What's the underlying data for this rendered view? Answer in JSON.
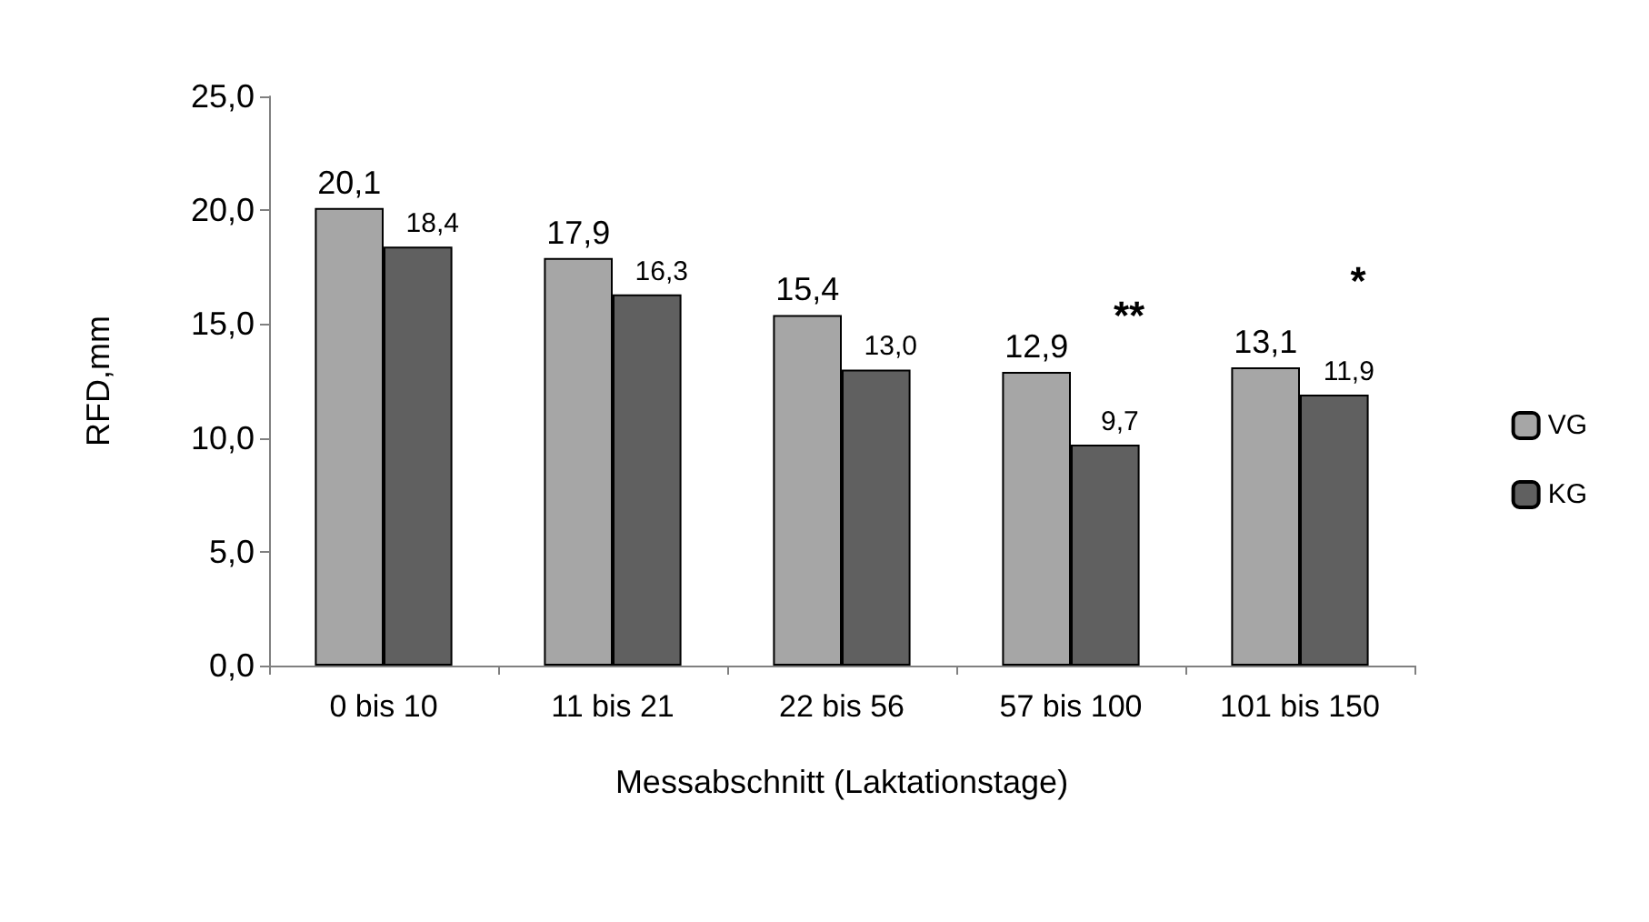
{
  "chart_data": {
    "type": "bar",
    "xlabel": "Messabschnitt (Laktationstage)",
    "ylabel": "RFD,mm",
    "categories": [
      "0 bis 10",
      "11 bis 21",
      "22 bis 56",
      "57 bis 100",
      "101 bis 150"
    ],
    "series": [
      {
        "name": "VG",
        "color": "#a6a6a6",
        "values": [
          20.1,
          17.9,
          15.4,
          12.9,
          13.1
        ],
        "value_labels": [
          "20,1",
          "17,9",
          "15,4",
          "12,9",
          "13,1"
        ]
      },
      {
        "name": "KG",
        "color": "#606060",
        "values": [
          18.4,
          16.3,
          13.0,
          9.7,
          11.9
        ],
        "value_labels": [
          "18,4",
          "16,3",
          "13,0",
          "9,7",
          "11,9"
        ]
      }
    ],
    "ylim": [
      0,
      25
    ],
    "yticks": [
      {
        "value": 0,
        "label": "0,0"
      },
      {
        "value": 5,
        "label": "5,0"
      },
      {
        "value": 10,
        "label": "10,0"
      },
      {
        "value": 15,
        "label": "15,0"
      },
      {
        "value": 20,
        "label": "20,0"
      },
      {
        "value": 25,
        "label": "25,0"
      }
    ],
    "annotations": [
      "**",
      "*"
    ],
    "grid": false,
    "legend": "right"
  }
}
